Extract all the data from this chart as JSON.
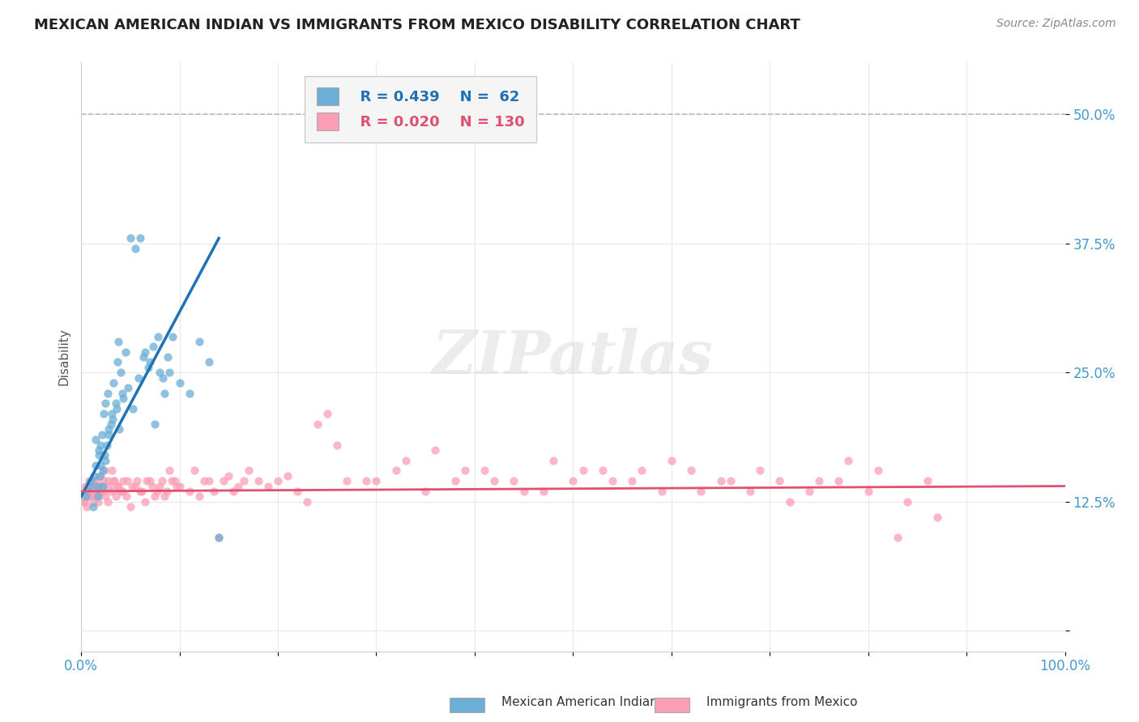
{
  "title": "MEXICAN AMERICAN INDIAN VS IMMIGRANTS FROM MEXICO DISABILITY CORRELATION CHART",
  "source": "Source: ZipAtlas.com",
  "ylabel": "Disability",
  "xlabel": "",
  "xlim": [
    0,
    1.0
  ],
  "ylim": [
    -0.02,
    0.55
  ],
  "xticks": [
    0.0,
    0.1,
    0.2,
    0.3,
    0.4,
    0.5,
    0.6,
    0.7,
    0.8,
    0.9,
    1.0
  ],
  "xticklabels": [
    "0.0%",
    "",
    "",
    "",
    "",
    "",
    "",
    "",
    "",
    "",
    "100.0%"
  ],
  "yticks": [
    0.0,
    0.125,
    0.25,
    0.375,
    0.5
  ],
  "yticklabels": [
    "",
    "12.5%",
    "25.0%",
    "37.5%",
    "50.0%"
  ],
  "legend_R1": "R = 0.439",
  "legend_N1": "N =  62",
  "legend_R2": "R = 0.020",
  "legend_N2": "N = 130",
  "blue_color": "#6baed6",
  "pink_color": "#fa9fb5",
  "blue_line_color": "#2171b5",
  "pink_line_color": "#e05070",
  "tick_color": "#4499cc",
  "watermark": "ZIPatlas",
  "blue_scatter_x": [
    0.005,
    0.008,
    0.01,
    0.012,
    0.013,
    0.015,
    0.016,
    0.017,
    0.018,
    0.019,
    0.02,
    0.02,
    0.021,
    0.022,
    0.023,
    0.024,
    0.025,
    0.026,
    0.027,
    0.028,
    0.03,
    0.031,
    0.033,
    0.035,
    0.037,
    0.038,
    0.04,
    0.042,
    0.045,
    0.05,
    0.055,
    0.06,
    0.065,
    0.07,
    0.075,
    0.08,
    0.085,
    0.09,
    0.1,
    0.11,
    0.12,
    0.13,
    0.14,
    0.015,
    0.018,
    0.022,
    0.025,
    0.028,
    0.032,
    0.036,
    0.039,
    0.043,
    0.048,
    0.053,
    0.058,
    0.063,
    0.068,
    0.073,
    0.078,
    0.083,
    0.088,
    0.093
  ],
  "blue_scatter_y": [
    0.13,
    0.14,
    0.145,
    0.12,
    0.15,
    0.16,
    0.14,
    0.13,
    0.17,
    0.15,
    0.18,
    0.16,
    0.19,
    0.14,
    0.21,
    0.17,
    0.22,
    0.18,
    0.23,
    0.19,
    0.2,
    0.21,
    0.24,
    0.22,
    0.26,
    0.28,
    0.25,
    0.23,
    0.27,
    0.38,
    0.37,
    0.38,
    0.27,
    0.26,
    0.2,
    0.25,
    0.23,
    0.25,
    0.24,
    0.23,
    0.28,
    0.26,
    0.09,
    0.185,
    0.175,
    0.155,
    0.165,
    0.195,
    0.205,
    0.215,
    0.195,
    0.225,
    0.235,
    0.215,
    0.245,
    0.265,
    0.255,
    0.275,
    0.285,
    0.245,
    0.265,
    0.285
  ],
  "pink_scatter_x": [
    0.002,
    0.003,
    0.004,
    0.005,
    0.006,
    0.007,
    0.008,
    0.009,
    0.01,
    0.011,
    0.012,
    0.013,
    0.014,
    0.015,
    0.016,
    0.017,
    0.018,
    0.019,
    0.02,
    0.021,
    0.022,
    0.023,
    0.025,
    0.027,
    0.029,
    0.031,
    0.033,
    0.035,
    0.037,
    0.04,
    0.043,
    0.046,
    0.05,
    0.055,
    0.06,
    0.065,
    0.07,
    0.075,
    0.08,
    0.085,
    0.09,
    0.095,
    0.1,
    0.11,
    0.12,
    0.13,
    0.14,
    0.15,
    0.16,
    0.17,
    0.18,
    0.19,
    0.2,
    0.21,
    0.22,
    0.23,
    0.24,
    0.25,
    0.26,
    0.27,
    0.3,
    0.33,
    0.36,
    0.39,
    0.42,
    0.45,
    0.48,
    0.51,
    0.54,
    0.57,
    0.6,
    0.63,
    0.66,
    0.69,
    0.72,
    0.75,
    0.78,
    0.81,
    0.84,
    0.87,
    0.003,
    0.006,
    0.009,
    0.012,
    0.015,
    0.018,
    0.021,
    0.024,
    0.027,
    0.03,
    0.034,
    0.038,
    0.042,
    0.047,
    0.052,
    0.057,
    0.062,
    0.067,
    0.072,
    0.077,
    0.082,
    0.087,
    0.092,
    0.097,
    0.115,
    0.125,
    0.135,
    0.145,
    0.155,
    0.165,
    0.29,
    0.32,
    0.35,
    0.38,
    0.41,
    0.44,
    0.47,
    0.5,
    0.53,
    0.56,
    0.59,
    0.62,
    0.65,
    0.68,
    0.71,
    0.74,
    0.77,
    0.8,
    0.83,
    0.86
  ],
  "pink_scatter_y": [
    0.13,
    0.125,
    0.14,
    0.135,
    0.12,
    0.13,
    0.145,
    0.135,
    0.14,
    0.13,
    0.125,
    0.14,
    0.135,
    0.145,
    0.13,
    0.125,
    0.14,
    0.135,
    0.15,
    0.14,
    0.135,
    0.145,
    0.13,
    0.125,
    0.14,
    0.155,
    0.145,
    0.13,
    0.14,
    0.135,
    0.145,
    0.13,
    0.12,
    0.14,
    0.135,
    0.125,
    0.145,
    0.13,
    0.14,
    0.13,
    0.155,
    0.145,
    0.14,
    0.135,
    0.13,
    0.145,
    0.09,
    0.15,
    0.14,
    0.155,
    0.145,
    0.14,
    0.145,
    0.15,
    0.135,
    0.125,
    0.2,
    0.21,
    0.18,
    0.145,
    0.145,
    0.165,
    0.175,
    0.155,
    0.145,
    0.135,
    0.165,
    0.155,
    0.145,
    0.155,
    0.165,
    0.135,
    0.145,
    0.155,
    0.125,
    0.145,
    0.165,
    0.155,
    0.125,
    0.11,
    0.125,
    0.135,
    0.14,
    0.145,
    0.13,
    0.14,
    0.135,
    0.155,
    0.145,
    0.135,
    0.145,
    0.14,
    0.135,
    0.145,
    0.14,
    0.145,
    0.135,
    0.145,
    0.14,
    0.135,
    0.145,
    0.135,
    0.145,
    0.14,
    0.155,
    0.145,
    0.135,
    0.145,
    0.135,
    0.145,
    0.145,
    0.155,
    0.135,
    0.145,
    0.155,
    0.145,
    0.135,
    0.145,
    0.155,
    0.145,
    0.135,
    0.155,
    0.145,
    0.135,
    0.145,
    0.135,
    0.145,
    0.135,
    0.09,
    0.145
  ],
  "blue_line_x": [
    0.0,
    0.14
  ],
  "blue_line_y": [
    0.13,
    0.38
  ],
  "pink_line_x": [
    0.0,
    1.0
  ],
  "pink_line_y": [
    0.135,
    0.14
  ],
  "dashed_line_x": [
    0.0,
    1.0
  ],
  "dashed_line_y": [
    0.5,
    0.5
  ],
  "bg_color": "#ffffff",
  "grid_color": "#e8e8e8",
  "legend_box_color": "#f5f5f5",
  "bottom_legend_label1": "Mexican American Indians",
  "bottom_legend_label2": "Immigrants from Mexico"
}
